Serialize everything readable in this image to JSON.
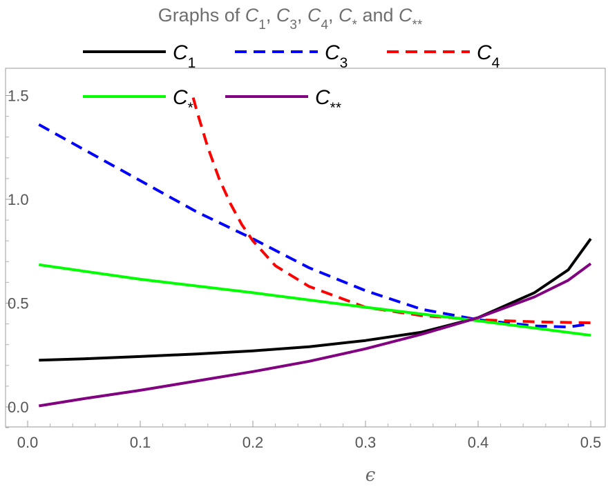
{
  "chart_data": {
    "type": "line",
    "title_parts": [
      {
        "t": "Graphs of ",
        "i": false,
        "sub": false
      },
      {
        "t": "C",
        "i": true,
        "sub": false
      },
      {
        "t": "1",
        "i": false,
        "sub": true
      },
      {
        "t": ", ",
        "i": false,
        "sub": false
      },
      {
        "t": "C",
        "i": true,
        "sub": false
      },
      {
        "t": "3",
        "i": false,
        "sub": true
      },
      {
        "t": ", ",
        "i": false,
        "sub": false
      },
      {
        "t": "C",
        "i": true,
        "sub": false
      },
      {
        "t": "4",
        "i": false,
        "sub": true
      },
      {
        "t": ", ",
        "i": false,
        "sub": false
      },
      {
        "t": "C",
        "i": true,
        "sub": false
      },
      {
        "t": "*",
        "i": false,
        "sub": true
      },
      {
        "t": " and ",
        "i": false,
        "sub": false
      },
      {
        "t": "C",
        "i": true,
        "sub": false
      },
      {
        "t": "**",
        "i": false,
        "sub": true
      }
    ],
    "xlabel": "ϵ",
    "ylabel": "",
    "xlim": [
      0,
      0.5
    ],
    "ylim": [
      -0.1,
      1.55
    ],
    "xticks": [
      0.0,
      0.1,
      0.2,
      0.3,
      0.4,
      0.5
    ],
    "xtick_labels": [
      "0.0",
      "0.1",
      "0.2",
      "0.3",
      "0.4",
      "0.5"
    ],
    "yticks": [
      0.0,
      0.5,
      1.0,
      1.5
    ],
    "ytick_labels": [
      "0.0",
      "0.5",
      "1.0",
      "1.5"
    ],
    "grid": false,
    "legend_placement": "top",
    "series": [
      {
        "name": "C",
        "subscript": "1",
        "color": "#000000",
        "dash": "solid",
        "x": [
          0.01,
          0.05,
          0.1,
          0.15,
          0.2,
          0.25,
          0.3,
          0.35,
          0.4,
          0.45,
          0.48,
          0.5
        ],
        "y": [
          0.225,
          0.232,
          0.243,
          0.255,
          0.27,
          0.29,
          0.32,
          0.36,
          0.43,
          0.55,
          0.66,
          0.81
        ]
      },
      {
        "name": "C",
        "subscript": "3",
        "color": "#0000ff",
        "dash": "dashed",
        "x": [
          0.01,
          0.05,
          0.1,
          0.15,
          0.2,
          0.25,
          0.3,
          0.35,
          0.4,
          0.45,
          0.48,
          0.5
        ],
        "y": [
          1.36,
          1.24,
          1.09,
          0.94,
          0.81,
          0.67,
          0.56,
          0.47,
          0.42,
          0.39,
          0.385,
          0.4
        ]
      },
      {
        "name": "C",
        "subscript": "4",
        "color": "#ff0000",
        "dash": "dashed",
        "x": [
          0.147,
          0.15,
          0.16,
          0.17,
          0.18,
          0.19,
          0.2,
          0.22,
          0.25,
          0.3,
          0.35,
          0.4,
          0.45,
          0.5
        ],
        "y": [
          1.49,
          1.43,
          1.25,
          1.1,
          0.98,
          0.88,
          0.8,
          0.68,
          0.58,
          0.48,
          0.44,
          0.42,
          0.41,
          0.405
        ]
      },
      {
        "name": "C",
        "subscript": "*",
        "color": "#00ff00",
        "dash": "solid",
        "x": [
          0.01,
          0.1,
          0.2,
          0.3,
          0.4,
          0.5
        ],
        "y": [
          0.685,
          0.615,
          0.55,
          0.48,
          0.415,
          0.345
        ]
      },
      {
        "name": "C",
        "subscript": "**",
        "color": "#800080",
        "dash": "solid",
        "x": [
          0.01,
          0.05,
          0.1,
          0.15,
          0.2,
          0.25,
          0.3,
          0.35,
          0.4,
          0.45,
          0.48,
          0.5
        ],
        "y": [
          0.005,
          0.04,
          0.08,
          0.125,
          0.17,
          0.22,
          0.28,
          0.35,
          0.43,
          0.53,
          0.61,
          0.69
        ]
      }
    ],
    "legend_rows": [
      [
        0,
        1,
        2
      ],
      [
        3,
        4
      ]
    ]
  }
}
